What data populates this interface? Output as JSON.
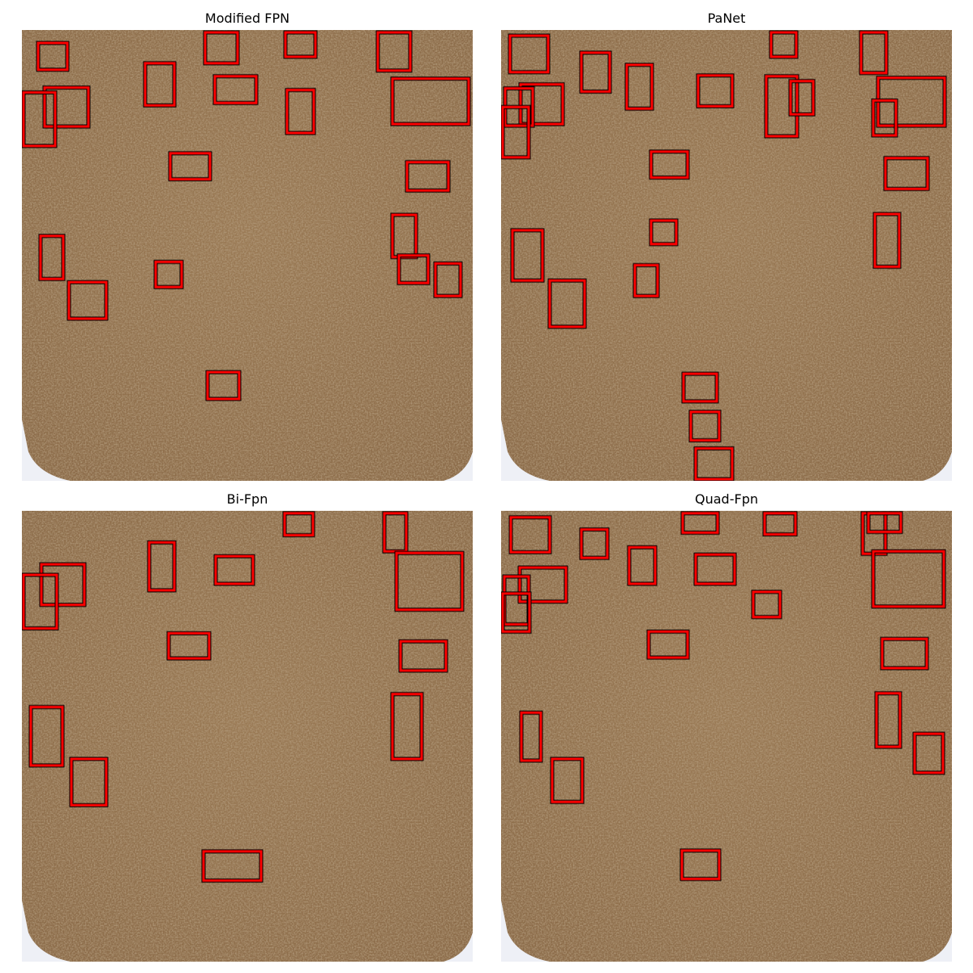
{
  "figure": {
    "colors": {
      "box_stroke": "#ff0000",
      "box_outline": "#000000"
    }
  },
  "panels": [
    {
      "key": "modified_fpn",
      "title": "Modified FPN",
      "detection_count": 21
    },
    {
      "key": "panet",
      "title": "PaNet",
      "detection_count": 22
    },
    {
      "key": "bi_fpn",
      "title": "Bi-Fpn",
      "detection_count": 14
    },
    {
      "key": "quad_fpn",
      "title": "Quad-Fpn",
      "detection_count": 20
    }
  ]
}
